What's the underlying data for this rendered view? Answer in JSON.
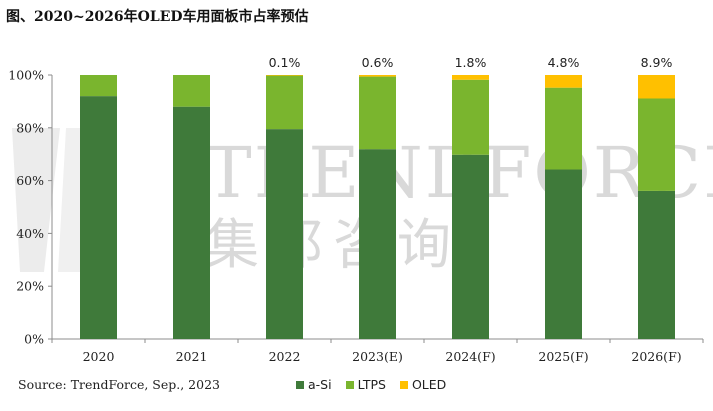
{
  "title": "图、2020~2026年OLED车用面板市占率预估",
  "source": "Source: TrendForce, Sep., 2023",
  "watermark": {
    "text_en": "TRENDFORCE",
    "text_cn": "集邦咨询"
  },
  "chart_data": {
    "type": "bar",
    "stacked": true,
    "categories": [
      "2020",
      "2021",
      "2022",
      "2023(E)",
      "2024(F)",
      "2025(F)",
      "2026(F)"
    ],
    "series": [
      {
        "name": "a-Si",
        "color": "#3f7a3a",
        "values": [
          92,
          88,
          79.5,
          71.9,
          69.8,
          64.2,
          56.1
        ]
      },
      {
        "name": "LTPS",
        "color": "#7ab52e",
        "values": [
          8,
          12,
          20.4,
          27.5,
          28.4,
          31,
          35
        ]
      },
      {
        "name": "OLED",
        "color": "#ffc000",
        "values": [
          0,
          0,
          0.1,
          0.6,
          1.8,
          4.8,
          8.9
        ]
      }
    ],
    "data_labels": [
      "",
      "",
      "0.1%",
      "0.6%",
      "1.8%",
      "4.8%",
      "8.9%"
    ],
    "y_ticks": [
      "0%",
      "20%",
      "40%",
      "60%",
      "80%",
      "100%"
    ],
    "ylim": [
      0,
      100
    ],
    "grid": false,
    "legend_position": "bottom"
  }
}
